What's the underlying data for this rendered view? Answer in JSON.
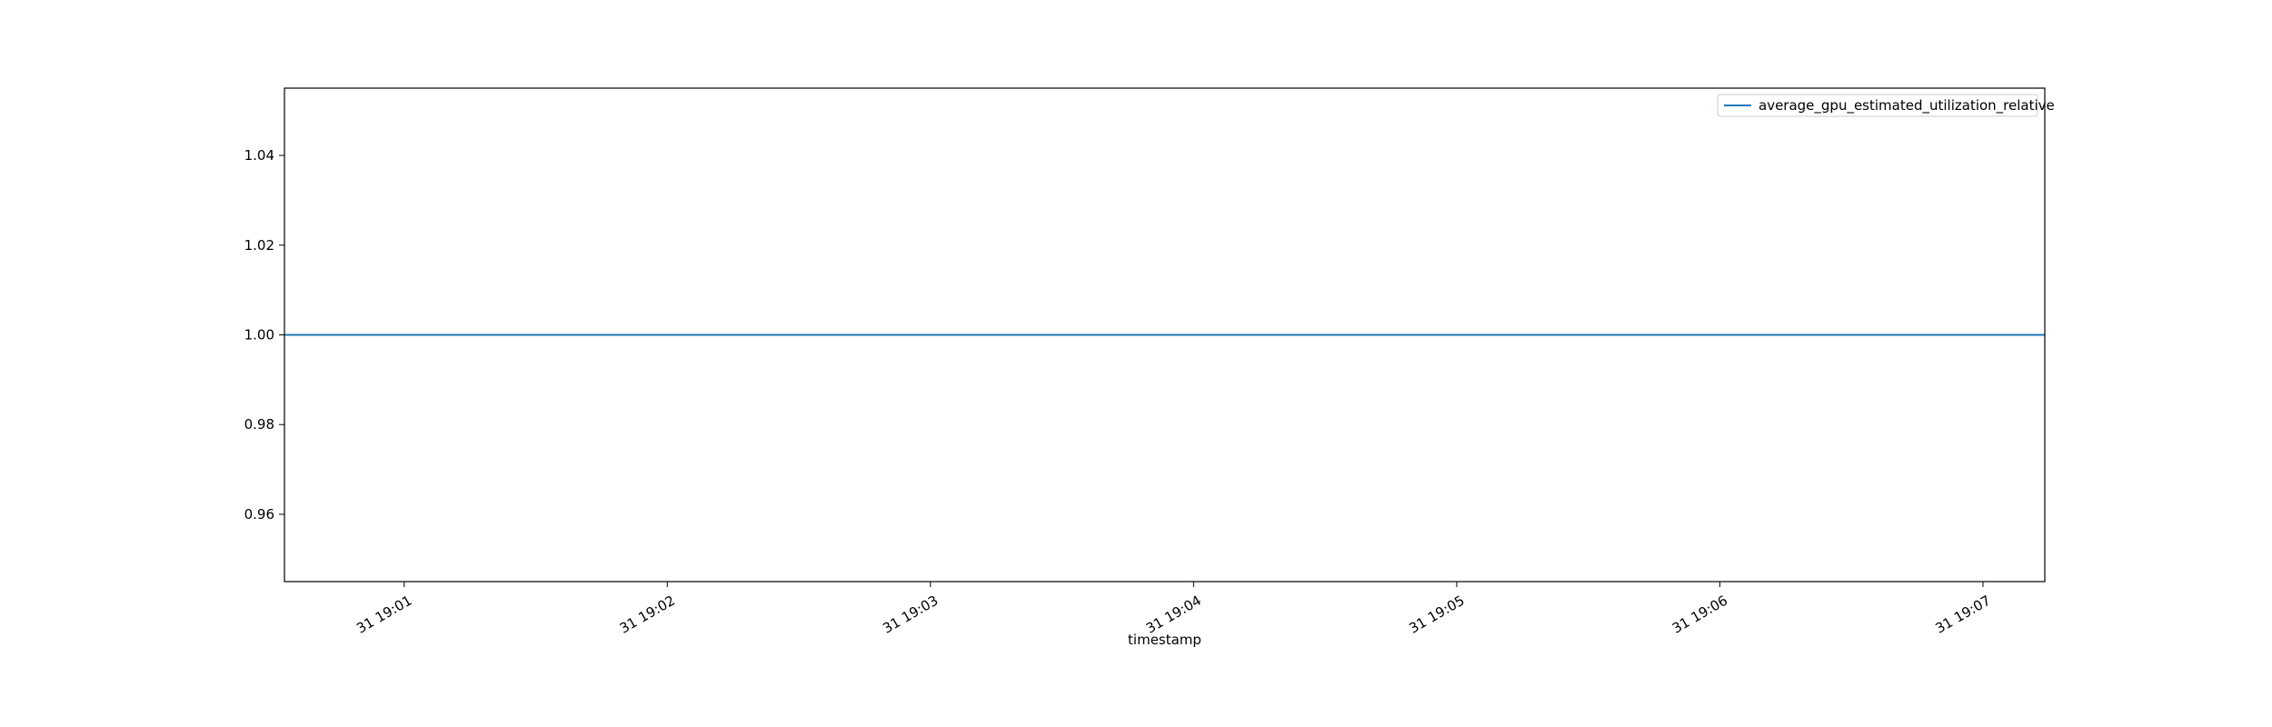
{
  "chart_data": {
    "type": "line",
    "title": "",
    "xlabel": "timestamp",
    "ylabel": "",
    "x_ticks": [
      {
        "label": "31 19:01",
        "value": 1.0
      },
      {
        "label": "31 19:02",
        "value": 2.0
      },
      {
        "label": "31 19:03",
        "value": 3.0
      },
      {
        "label": "31 19:04",
        "value": 4.0
      },
      {
        "label": "31 19:05",
        "value": 5.0
      },
      {
        "label": "31 19:06",
        "value": 6.0
      },
      {
        "label": "31 19:07",
        "value": 7.0
      }
    ],
    "xlim": [
      0.545,
      7.235
    ],
    "y_ticks": [
      {
        "label": "0.96",
        "value": 0.96
      },
      {
        "label": "0.98",
        "value": 0.98
      },
      {
        "label": "1.00",
        "value": 1.0
      },
      {
        "label": "1.02",
        "value": 1.02
      },
      {
        "label": "1.04",
        "value": 1.04
      }
    ],
    "ylim": [
      0.945,
      1.055
    ],
    "grid": false,
    "legend_position": "top-right",
    "series": [
      {
        "name": "average_gpu_estimated_utilization_relative",
        "color": "#1f77b4",
        "x": [
          0.545,
          7.235
        ],
        "y": [
          1.0,
          1.0
        ]
      }
    ]
  }
}
